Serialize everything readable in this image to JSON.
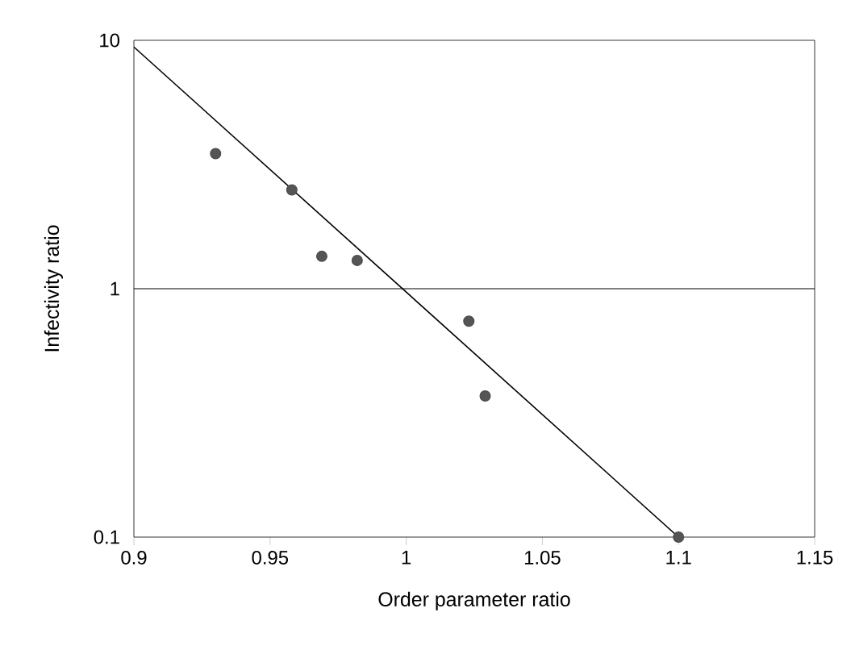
{
  "chart_data": {
    "type": "scatter",
    "xlabel": "Order parameter ratio",
    "ylabel": "Infectivity ratio",
    "series": [
      {
        "color": "#555555",
        "marker": "circle",
        "x": [
          0.93,
          0.958,
          0.969,
          0.982,
          1.023,
          1.029,
          1.1
        ],
        "values": [
          3.5,
          2.5,
          1.35,
          1.3,
          0.74,
          0.37,
          0.1
        ]
      },
      {
        "type": "line",
        "color": "#000000",
        "marker": "none",
        "x": [
          0.9,
          1.1
        ],
        "values": [
          9.4,
          0.1
        ]
      }
    ],
    "log": "y",
    "xlim": [
      0.9,
      1.15
    ],
    "ylim": [
      0.1,
      10
    ],
    "xticks": [
      0.9,
      0.95,
      1,
      1.05,
      1.1,
      1.15
    ],
    "yticks": [
      0.1,
      1,
      10
    ],
    "ref_lines": [
      {
        "axis": "y",
        "value": 1
      }
    ],
    "grid": false
  }
}
